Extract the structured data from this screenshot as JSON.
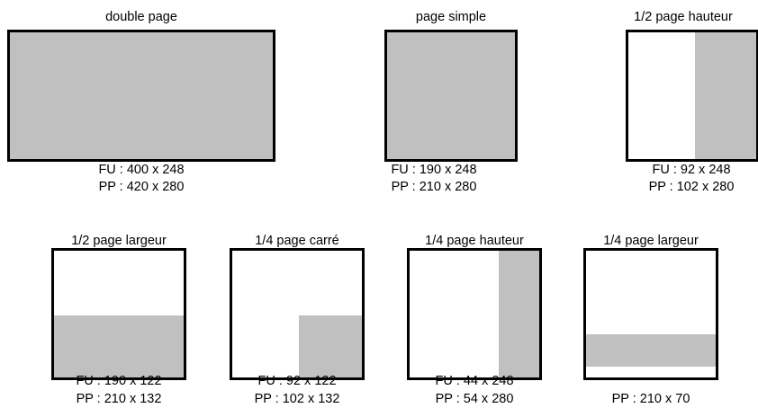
{
  "formats": {
    "double_page": {
      "title": "double page",
      "fu": "FU : 400 x 248",
      "pp": "PP : 420 x 280"
    },
    "page_simple": {
      "title": "page simple",
      "fu": "FU : 190 x 248",
      "pp": "PP : 210 x 280"
    },
    "demi_page_hauteur": {
      "title": "1/2 page hauteur",
      "fu": "FU : 92 x 248",
      "pp": "PP : 102 x 280"
    },
    "demi_page_largeur": {
      "title": "1/2 page largeur",
      "fu": "FU : 190 x 122",
      "pp": "PP : 210 x 132"
    },
    "quart_page_carre": {
      "title": "1/4 page carré",
      "fu": "FU : 92 x 122",
      "pp": "PP : 102 x 132"
    },
    "quart_page_hauteur": {
      "title": "1/4 page hauteur",
      "fu": "FU : 44 x 248",
      "pp": "PP : 54 x 280"
    },
    "quart_page_largeur": {
      "title": "1/4 page largeur",
      "pp": "PP : 210 x 70"
    }
  },
  "colors": {
    "ad_area": "#c0c0c0",
    "page_border": "#000000",
    "page_background": "#ffffff"
  }
}
